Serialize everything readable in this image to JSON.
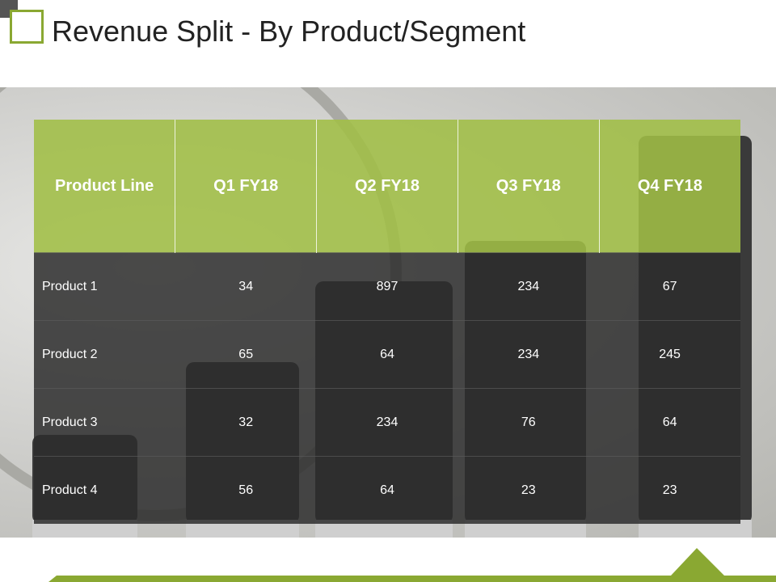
{
  "header": {
    "title": "Revenue Split - By Product/Segment"
  },
  "table": {
    "columns": [
      "Product Line",
      "Q1 FY18",
      "Q2 FY18",
      "Q3 FY18",
      "Q4 FY18"
    ],
    "rows": [
      [
        "Product 1",
        "34",
        "897",
        "234",
        "67"
      ],
      [
        "Product 2",
        "65",
        "64",
        "234",
        "245"
      ],
      [
        "Product 3",
        "32",
        "234",
        "76",
        "64"
      ],
      [
        "Product 4",
        "56",
        "64",
        "23",
        "23"
      ]
    ]
  }
}
